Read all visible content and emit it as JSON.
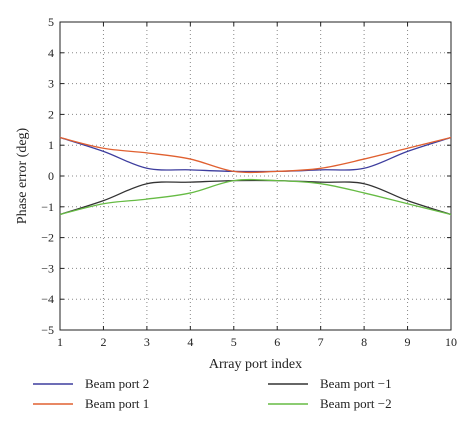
{
  "chart_data": {
    "type": "line",
    "title": "",
    "xlabel": "Array port index",
    "ylabel": "Phase error (deg)",
    "xlim": [
      1,
      10
    ],
    "ylim": [
      -5,
      5
    ],
    "x_ticks": [
      "1",
      "2",
      "3",
      "4",
      "5",
      "6",
      "7",
      "8",
      "9",
      "10"
    ],
    "y_ticks": [
      "−5",
      "−4",
      "−3",
      "−2",
      "−1",
      "0",
      "1",
      "2",
      "3",
      "4",
      "5"
    ],
    "grid": true,
    "legend_position": "bottom",
    "x": [
      1,
      2,
      3,
      4,
      5,
      6,
      7,
      8,
      9,
      10
    ],
    "series": [
      {
        "name": "Beam port 2",
        "color": "#3d3d9e",
        "values": [
          1.25,
          0.8,
          0.25,
          0.2,
          0.15,
          0.15,
          0.2,
          0.25,
          0.8,
          1.25
        ]
      },
      {
        "name": "Beam port 1",
        "color": "#e06030",
        "values": [
          1.25,
          0.9,
          0.75,
          0.55,
          0.15,
          0.15,
          0.25,
          0.55,
          0.9,
          1.25
        ]
      },
      {
        "name": "Beam port −1",
        "color": "#333333",
        "values": [
          -1.25,
          -0.8,
          -0.25,
          -0.2,
          -0.15,
          -0.15,
          -0.2,
          -0.25,
          -0.8,
          -1.25
        ]
      },
      {
        "name": "Beam port −2",
        "color": "#66bb44",
        "values": [
          -1.25,
          -0.9,
          -0.75,
          -0.55,
          -0.15,
          -0.15,
          -0.25,
          -0.55,
          -0.9,
          -1.25
        ]
      }
    ]
  }
}
